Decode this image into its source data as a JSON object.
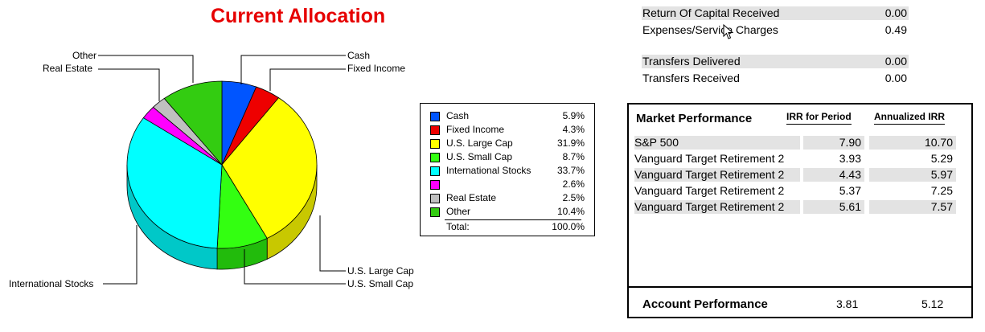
{
  "chart_data": {
    "type": "pie",
    "title": "Current Allocation",
    "slices": [
      {
        "label": "Cash",
        "value": 5.9,
        "color": "#0055ff",
        "side": "#003fbf"
      },
      {
        "label": "Fixed Income",
        "value": 4.3,
        "color": "#ee0000",
        "side": "#b30000"
      },
      {
        "label": "U.S. Large Cap",
        "value": 31.9,
        "color": "#ffff00",
        "side": "#c8c800"
      },
      {
        "label": "U.S. Small Cap",
        "value": 8.7,
        "color": "#33ff11",
        "side": "#22bb0c"
      },
      {
        "label": "International Stocks",
        "value": 33.7,
        "color": "#00ffff",
        "side": "#00c8c8"
      },
      {
        "label": "",
        "value": 2.6,
        "color": "#ff00ff",
        "side": "#c000c0"
      },
      {
        "label": "Real Estate",
        "value": 2.5,
        "color": "#c0c0c0",
        "side": "#909090"
      },
      {
        "label": "Other",
        "value": 10.4,
        "color": "#33cc11",
        "side": "#26990c"
      }
    ],
    "legend": {
      "placement": "right",
      "rows": [
        {
          "label": "Cash",
          "pct": "5.9%"
        },
        {
          "label": "Fixed Income",
          "pct": "4.3%"
        },
        {
          "label": "U.S. Large Cap",
          "pct": "31.9%"
        },
        {
          "label": "U.S. Small Cap",
          "pct": "8.7%"
        },
        {
          "label": "International Stocks",
          "pct": "33.7%"
        },
        {
          "label": "",
          "pct": "2.6%"
        },
        {
          "label": "Real Estate",
          "pct": "2.5%"
        },
        {
          "label": "Other",
          "pct": "10.4%"
        }
      ],
      "total_label": "Total:",
      "total_pct": "100.0%"
    }
  },
  "callouts": {
    "other": "Other",
    "real_estate": "Real Estate",
    "cash": "Cash",
    "fixed_income": "Fixed Income",
    "international": "International Stocks",
    "large_cap": "U.S. Large Cap",
    "small_cap": "U.S. Small Cap"
  },
  "summary": [
    {
      "label": "Return Of Capital Received",
      "value": "0.00",
      "shaded": true
    },
    {
      "label": "Expenses/Service Charges",
      "value": "0.49",
      "shaded": false
    },
    {
      "label": "Transfers Delivered",
      "value": "0.00",
      "shaded": true
    },
    {
      "label": "Transfers Received",
      "value": "0.00",
      "shaded": false
    }
  ],
  "market": {
    "title": "Market Performance",
    "col_irr": "IRR for Period",
    "col_annualized": "Annualized IRR",
    "rows": [
      {
        "name": "S&P 500",
        "irr": "7.90",
        "annualized": "10.70"
      },
      {
        "name": "Vanguard Target Retirement 2",
        "irr": "3.93",
        "annualized": "5.29"
      },
      {
        "name": "Vanguard Target Retirement 2",
        "irr": "4.43",
        "annualized": "5.97"
      },
      {
        "name": "Vanguard Target Retirement 2",
        "irr": "5.37",
        "annualized": "7.25"
      },
      {
        "name": "Vanguard Target Retirement 2",
        "irr": "5.61",
        "annualized": "7.57"
      }
    ],
    "footer_label": "Account Performance",
    "footer_irr": "3.81",
    "footer_annualized": "5.12"
  },
  "icons": {
    "cursor": "mouse-pointer-icon"
  }
}
